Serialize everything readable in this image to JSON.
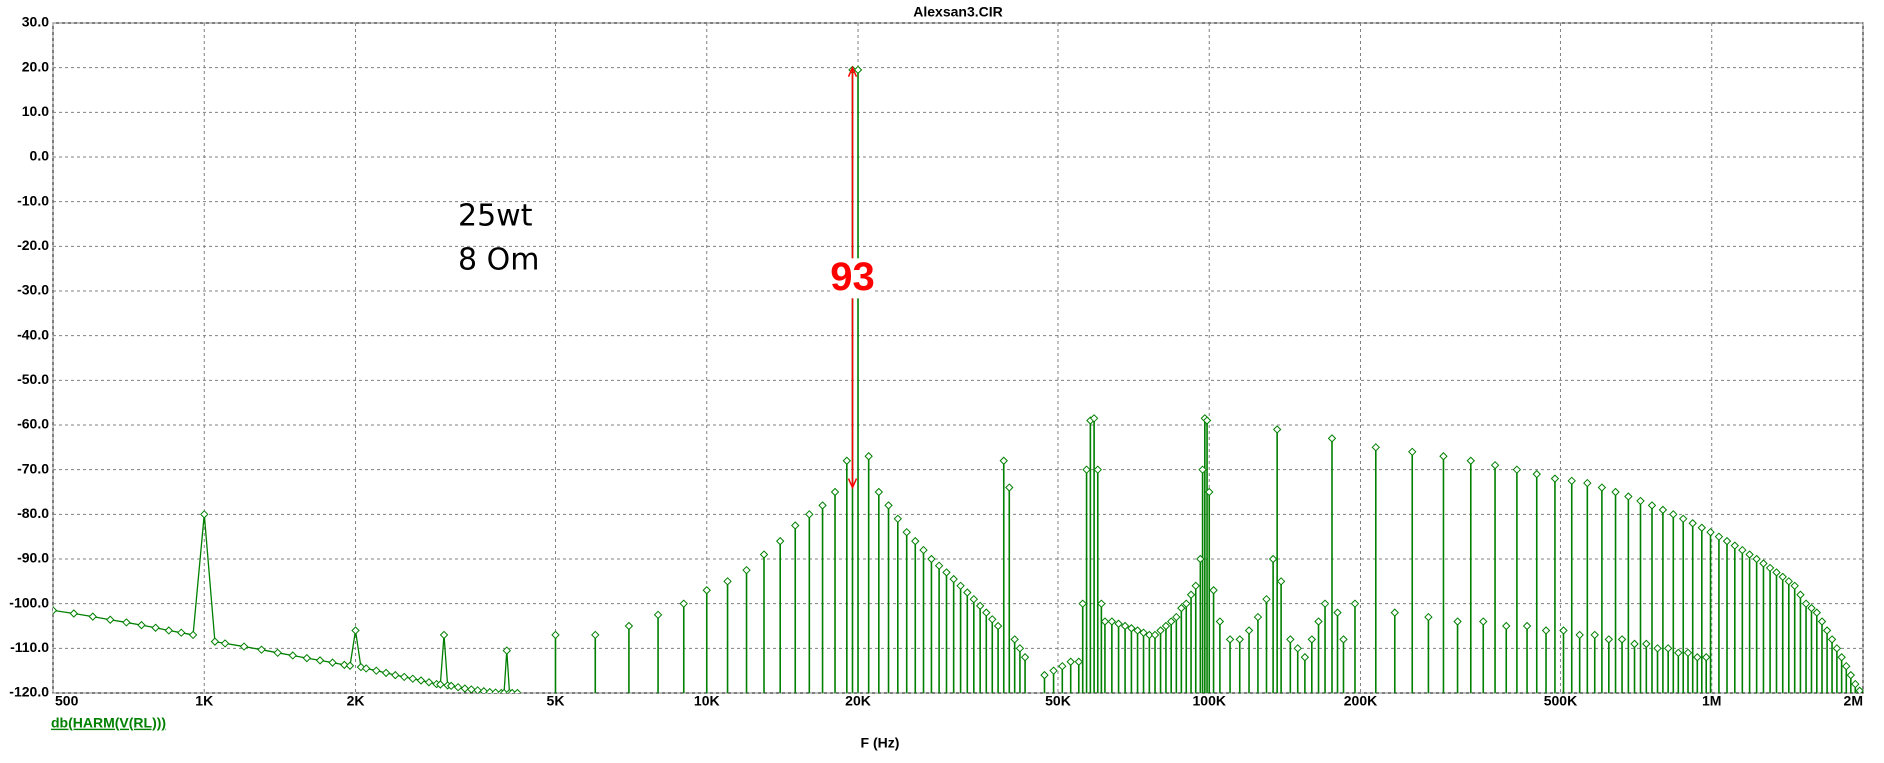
{
  "chart_data": {
    "type": "line",
    "title": "Alexsan3.CIR",
    "x_label": "F (Hz)",
    "log_x": true,
    "grid": true,
    "xlim": [
      500,
      2000000
    ],
    "xticks": [
      500,
      {
        "value": 1000,
        "label": "1K"
      },
      {
        "value": 2000,
        "label": "2K"
      },
      {
        "value": 5000,
        "label": "5K"
      },
      {
        "value": 10000,
        "label": "10K"
      },
      {
        "value": 20000,
        "label": "20K"
      },
      {
        "value": 50000,
        "label": "50K"
      },
      {
        "value": 100000,
        "label": "100K"
      },
      {
        "value": 200000,
        "label": "200K"
      },
      {
        "value": 500000,
        "label": "500K"
      },
      {
        "value": 1000000,
        "label": "1M"
      },
      {
        "value": 2000000,
        "label": "2M"
      }
    ],
    "ylim": [
      -120,
      30
    ],
    "yticks": [
      {
        "value": 30,
        "label": "30.0"
      },
      {
        "value": 20,
        "label": "20.0"
      },
      {
        "value": 10,
        "label": "10.0"
      },
      {
        "value": 0,
        "label": "0.0"
      },
      {
        "value": -10,
        "label": "-10.0"
      },
      {
        "value": -20,
        "label": "-20.0"
      },
      {
        "value": -30,
        "label": "-30.0"
      },
      {
        "value": -40,
        "label": "-40.0"
      },
      {
        "value": -50,
        "label": "-50.0"
      },
      {
        "value": -60,
        "label": "-60.0"
      },
      {
        "value": -70,
        "label": "-70.0"
      },
      {
        "value": -80,
        "label": "-80.0"
      },
      {
        "value": -90,
        "label": "-90.0"
      },
      {
        "value": -100,
        "label": "-100.0"
      },
      {
        "value": -110,
        "label": "-110.0"
      },
      {
        "value": -120,
        "label": "-120.0"
      }
    ],
    "series": [
      {
        "name": "db(HARM(V(RL)))",
        "color": "#008000",
        "x": [
          500,
          550,
          600,
          650,
          700,
          750,
          800,
          850,
          900,
          950,
          1000,
          1050,
          1100,
          1200,
          1300,
          1400,
          1500,
          1600,
          1700,
          1800,
          1900,
          1950,
          2000,
          2050,
          2100,
          2200,
          2300,
          2400,
          2500,
          2600,
          2700,
          2800,
          2900,
          2950,
          3000,
          3050,
          3100,
          3200,
          3300,
          3400,
          3500,
          3600,
          3700,
          3800,
          3900,
          3950,
          4000,
          4050,
          4100,
          4200
        ],
        "values": [
          -101.5,
          -102.2,
          -102.9,
          -103.6,
          -104.2,
          -104.8,
          -105.4,
          -106,
          -106.5,
          -107,
          -80,
          -108.5,
          -108.9,
          -109.6,
          -110.3,
          -111,
          -111.6,
          -112.2,
          -112.7,
          -113.2,
          -113.7,
          -113.9,
          -106,
          -114.2,
          -114.5,
          -115,
          -115.5,
          -116,
          -116.4,
          -116.8,
          -117.2,
          -117.6,
          -118,
          -118.1,
          -107,
          -118.3,
          -118.4,
          -118.7,
          -119,
          -119.2,
          -119.4,
          -119.6,
          -119.8,
          -119.9,
          -120,
          -120,
          -110.5,
          -120,
          -120,
          -120
        ],
        "stem_points": [
          [
            5000,
            -107
          ],
          [
            6000,
            -107
          ],
          [
            7000,
            -105
          ],
          [
            8000,
            -102.5
          ],
          [
            9000,
            -100
          ],
          [
            10000,
            -97
          ],
          [
            11000,
            -95
          ],
          [
            12000,
            -92.5
          ],
          [
            13000,
            -89
          ],
          [
            14000,
            -86
          ],
          [
            15000,
            -82.5
          ],
          [
            16000,
            -80
          ],
          [
            17000,
            -78
          ],
          [
            18000,
            -75
          ],
          [
            19000,
            -68
          ],
          [
            19500,
            19.5
          ],
          [
            20000,
            19.5
          ],
          [
            21000,
            -67
          ],
          [
            22000,
            -75
          ],
          [
            23000,
            -78
          ],
          [
            24000,
            -81
          ],
          [
            25000,
            -84
          ],
          [
            26000,
            -86
          ],
          [
            27000,
            -88
          ],
          [
            28000,
            -90
          ],
          [
            29000,
            -91.5
          ],
          [
            30000,
            -93
          ],
          [
            31000,
            -94.5
          ],
          [
            32000,
            -96
          ],
          [
            33000,
            -97.5
          ],
          [
            34000,
            -99
          ],
          [
            35000,
            -100.5
          ],
          [
            36000,
            -102
          ],
          [
            37000,
            -103.5
          ],
          [
            38000,
            -105
          ],
          [
            39000,
            -68
          ],
          [
            40000,
            -74
          ],
          [
            41000,
            -108
          ],
          [
            42000,
            -110
          ],
          [
            43000,
            -112
          ],
          [
            47000,
            -116
          ],
          [
            49000,
            -115
          ],
          [
            51000,
            -114
          ],
          [
            53000,
            -113
          ],
          [
            55000,
            -113
          ],
          [
            56000,
            -100
          ],
          [
            57000,
            -70
          ],
          [
            58000,
            -59
          ],
          [
            59000,
            -58.5
          ],
          [
            60000,
            -70
          ],
          [
            61000,
            -100
          ],
          [
            62000,
            -104
          ],
          [
            64000,
            -104
          ],
          [
            66000,
            -104.5
          ],
          [
            68000,
            -105
          ],
          [
            70000,
            -105.5
          ],
          [
            72000,
            -106
          ],
          [
            74000,
            -106.5
          ],
          [
            76000,
            -107
          ],
          [
            78000,
            -107
          ],
          [
            80000,
            -106
          ],
          [
            82000,
            -105
          ],
          [
            84000,
            -104
          ],
          [
            86000,
            -103
          ],
          [
            88000,
            -101
          ],
          [
            90000,
            -100
          ],
          [
            92000,
            -98
          ],
          [
            94000,
            -96
          ],
          [
            96000,
            -90
          ],
          [
            97000,
            -70
          ],
          [
            98000,
            -58.5
          ],
          [
            99000,
            -59
          ],
          [
            100000,
            -75
          ],
          [
            102000,
            -97
          ],
          [
            105000,
            -104
          ],
          [
            110000,
            -108
          ],
          [
            115000,
            -108
          ],
          [
            120000,
            -106
          ],
          [
            125000,
            -103
          ],
          [
            130000,
            -99
          ],
          [
            134000,
            -90
          ],
          [
            136500,
            -61
          ],
          [
            139000,
            -95
          ],
          [
            145000,
            -108
          ],
          [
            150000,
            -110
          ],
          [
            155000,
            -112
          ],
          [
            160000,
            -108
          ],
          [
            165000,
            -104
          ],
          [
            170000,
            -100
          ],
          [
            175500,
            -63
          ],
          [
            180000,
            -102
          ],
          [
            185000,
            -108
          ],
          [
            195000,
            -100
          ],
          [
            214500,
            -65
          ],
          [
            234000,
            -102
          ],
          [
            253500,
            -66
          ],
          [
            273000,
            -103
          ],
          [
            292500,
            -67
          ],
          [
            312000,
            -104
          ],
          [
            331500,
            -68
          ],
          [
            351000,
            -104
          ],
          [
            370500,
            -69
          ],
          [
            390000,
            -105
          ],
          [
            409500,
            -70
          ],
          [
            429000,
            -105
          ],
          [
            448500,
            -71
          ],
          [
            468000,
            -106
          ],
          [
            487500,
            -72
          ],
          [
            507000,
            -106
          ],
          [
            526500,
            -72.5
          ],
          [
            546000,
            -107
          ],
          [
            565500,
            -73
          ],
          [
            585000,
            -107
          ],
          [
            604500,
            -74
          ],
          [
            624000,
            -108
          ],
          [
            643500,
            -75
          ],
          [
            663000,
            -108
          ],
          [
            682500,
            -76
          ],
          [
            702000,
            -109
          ],
          [
            721500,
            -77
          ],
          [
            741000,
            -109
          ],
          [
            760500,
            -78
          ],
          [
            780000,
            -110
          ],
          [
            799500,
            -79
          ],
          [
            819000,
            -110
          ],
          [
            838500,
            -80
          ],
          [
            858000,
            -111
          ],
          [
            877500,
            -81
          ],
          [
            897000,
            -111
          ],
          [
            916500,
            -82
          ],
          [
            936000,
            -112
          ],
          [
            955500,
            -83
          ],
          [
            975000,
            -112
          ],
          [
            994500,
            -84
          ],
          [
            1033500,
            -85
          ],
          [
            1072500,
            -86
          ],
          [
            1111500,
            -87
          ],
          [
            1150500,
            -88
          ],
          [
            1189500,
            -89
          ],
          [
            1228500,
            -90
          ],
          [
            1267500,
            -91
          ],
          [
            1306500,
            -92
          ],
          [
            1345500,
            -93
          ],
          [
            1384500,
            -94
          ],
          [
            1423500,
            -95
          ],
          [
            1462500,
            -96
          ],
          [
            1501500,
            -98
          ],
          [
            1540500,
            -100
          ],
          [
            1579500,
            -101
          ],
          [
            1618500,
            -102
          ],
          [
            1657500,
            -104
          ],
          [
            1696500,
            -106
          ],
          [
            1735500,
            -108
          ],
          [
            1774500,
            -110
          ],
          [
            1813500,
            -112
          ],
          [
            1852500,
            -114
          ],
          [
            1891500,
            -116
          ],
          [
            1930500,
            -118
          ],
          [
            1969500,
            -119.5
          ]
        ]
      }
    ],
    "notes": [
      "25wt",
      "8 Om"
    ],
    "arrow": {
      "x": 19500,
      "from": 20,
      "to": -74,
      "label": "93",
      "color": "#ff0000"
    }
  }
}
